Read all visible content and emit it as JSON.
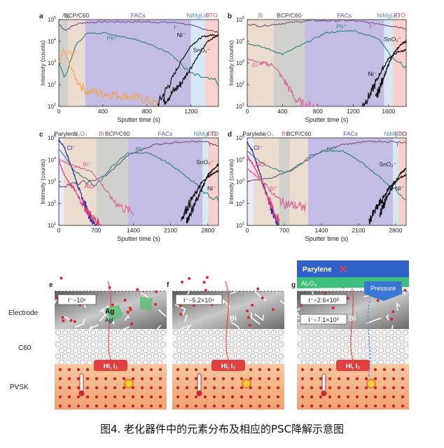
{
  "figure": {
    "caption": "图4. 老化器件中的元素分布及相应的PSC降解示意图",
    "panels": {
      "a": {
        "letter": "a",
        "layers": [
          "Ag",
          "BCP/C60",
          "FACs",
          "NiMgLiO",
          "FTO"
        ],
        "series_labels": [
          "AgI⁻",
          "Pb⁺",
          "I⁻",
          "Ni⁻",
          "SnO₂⁻"
        ]
      },
      "b": {
        "letter": "b",
        "layers": [
          "Bi",
          "BCP/C60",
          "FACs",
          "NiMgLiO",
          "FTO"
        ],
        "series_labels": [
          "Bi⁺",
          "Pb⁺",
          "I⁻",
          "Ni⁻",
          "SnO₂⁻"
        ]
      },
      "c": {
        "letter": "c",
        "layers": [
          "Parylene",
          "Al₂O₃",
          "Bi",
          "BCP/C60",
          "FACs",
          "NiMgLiO",
          "FTO"
        ],
        "series_labels": [
          "Cl⁻",
          "Bi⁺",
          "AlO⁻",
          "Pb⁺",
          "I⁻",
          "SnO₂⁻",
          "Ni⁻"
        ]
      },
      "d": {
        "letter": "d",
        "layers": [
          "Parylene",
          "Al₂O₃",
          "Bi",
          "BCP/C60",
          "FACs",
          "NiMgLiO",
          "FTO"
        ],
        "series_labels": [
          "Cl⁻",
          "AlO⁻",
          "Pb⁺",
          "Bi⁺",
          "I⁻",
          "SnO₂⁻",
          "Ni⁻"
        ]
      }
    },
    "schematics": {
      "e": {
        "letter": "e",
        "conc": "I⁻~10⁵",
        "metal": "Ag",
        "metal2": "AgI",
        "side_labels": [
          "Electrode",
          "C60",
          "PVSK"
        ],
        "hi": "HI, I₂"
      },
      "f": {
        "letter": "f",
        "conc": "I⁻~5.2×10⁴",
        "metal": "Bi",
        "hi": "HI, I₂"
      },
      "g": {
        "letter": "g",
        "conc1": "I⁻~2.6×10³",
        "conc2": "I⁻~7.1×10³",
        "metal": "Bi",
        "top1": "Parylene",
        "top2": "Al₂O₃",
        "pressure": "Pressure",
        "hi": "HI, I₂"
      }
    },
    "colors": {
      "iodine": "#7a5a86",
      "pb": "#3a8a7e",
      "ag": "#f5a545",
      "bi": "#d46d9a",
      "ni": "#111111",
      "sn": "#8a8a8a",
      "cl": "#2b2a9a",
      "alo": "#e0407a",
      "facs": "#b8b0e0",
      "nimg": "#cfe4f2",
      "fto": "#f7c8c5",
      "tan": "#e8d6c8",
      "gray": "#c8c8c4"
    }
  },
  "chart_data": [
    {
      "panel": "a",
      "type": "line",
      "xlabel": "Sputter time (s)",
      "ylabel": "Intensity (counts)",
      "xlim": [
        0,
        1450
      ],
      "ylim_log10": [
        1,
        5
      ],
      "xticks": [
        0,
        400,
        800,
        1200
      ],
      "series": [
        {
          "name": "I⁻",
          "x": [
            0,
            60,
            120,
            200,
            400,
            800,
            1100,
            1300,
            1450
          ],
          "log10": [
            4.8,
            4.5,
            4.7,
            4.85,
            4.9,
            4.9,
            4.85,
            4.6,
            4.4
          ]
        },
        {
          "name": "Pb⁺",
          "x": [
            0,
            60,
            150,
            250,
            400,
            700,
            1000,
            1200,
            1450
          ],
          "log10": [
            3.0,
            2.3,
            3.8,
            4.35,
            4.4,
            4.1,
            3.5,
            2.5,
            2.1
          ]
        },
        {
          "name": "AgI⁻",
          "x": [
            0,
            40,
            80,
            150,
            250,
            400,
            600,
            800,
            900
          ],
          "log10": [
            3.0,
            3.6,
            3.2,
            2.3,
            1.7,
            1.6,
            1.5,
            1.3,
            1.1
          ]
        },
        {
          "name": "Ni⁻",
          "x": [
            900,
            1000,
            1100,
            1200,
            1300,
            1400,
            1450
          ],
          "log10": [
            1.1,
            2.0,
            3.0,
            3.8,
            4.2,
            4.3,
            4.25
          ]
        },
        {
          "name": "SnO₂⁻",
          "x": [
            950,
            1100,
            1250,
            1350,
            1450
          ],
          "log10": [
            1.2,
            2.0,
            3.2,
            4.0,
            4.3
          ]
        }
      ]
    },
    {
      "panel": "b",
      "type": "line",
      "xlabel": "Sputter time (s)",
      "ylabel": "Intensity (counts)",
      "xlim": [
        0,
        1800
      ],
      "ylim_log10": [
        1,
        5
      ],
      "xticks": [
        0,
        400,
        800,
        1200,
        1600
      ],
      "series": [
        {
          "name": "I⁻",
          "x": [
            0,
            150,
            350,
            700,
            1200,
            1500,
            1800
          ],
          "log10": [
            4.8,
            4.7,
            4.8,
            4.95,
            4.95,
            4.8,
            4.6
          ]
        },
        {
          "name": "Pb⁺",
          "x": [
            0,
            200,
            400,
            650,
            900,
            1200,
            1500,
            1650,
            1800
          ],
          "log10": [
            3.9,
            3.7,
            3.4,
            3.9,
            4.4,
            4.5,
            4.1,
            3.2,
            2.8
          ]
        },
        {
          "name": "Bi⁺",
          "x": [
            0,
            150,
            300,
            450,
            550,
            650,
            800
          ],
          "log10": [
            3.2,
            3.0,
            2.9,
            2.0,
            1.3,
            1.05,
            1.0
          ]
        },
        {
          "name": "Ni⁻",
          "x": [
            1300,
            1400,
            1500,
            1600,
            1700,
            1800
          ],
          "log10": [
            1.0,
            1.6,
            2.5,
            3.2,
            3.5,
            3.6
          ]
        },
        {
          "name": "SnO₂⁻",
          "x": [
            1450,
            1550,
            1650,
            1750,
            1800
          ],
          "log10": [
            1.3,
            2.4,
            3.4,
            3.9,
            4.0
          ]
        }
      ]
    },
    {
      "panel": "c",
      "type": "line",
      "xlabel": "Sputter time (s)",
      "ylabel": "Intensity (counts)",
      "xlim": [
        0,
        3000
      ],
      "ylim_log10": [
        1,
        5
      ],
      "xticks": [
        0,
        700,
        1400,
        2100,
        2800
      ],
      "series": [
        {
          "name": "I⁻",
          "x": [
            0,
            300,
            600,
            900,
            1300,
            1800,
            2400,
            2800,
            3000
          ],
          "log10": [
            2.8,
            2.9,
            3.0,
            3.3,
            4.2,
            4.7,
            4.85,
            4.8,
            4.6
          ]
        },
        {
          "name": "Pb⁺",
          "x": [
            0,
            300,
            700,
            1000,
            1300,
            1700,
            2100,
            2500,
            2800,
            3000
          ],
          "log10": [
            4.5,
            3.5,
            2.8,
            3.7,
            4.3,
            4.3,
            3.8,
            3.0,
            2.4,
            2.1
          ]
        },
        {
          "name": "Cl⁻",
          "x": [
            0,
            100,
            250,
            400,
            550,
            650,
            750
          ],
          "log10": [
            4.9,
            4.6,
            3.6,
            2.5,
            1.6,
            1.1,
            1.0
          ]
        },
        {
          "name": "Bi⁺",
          "x": [
            0,
            300,
            600,
            800,
            1000,
            1200,
            1400
          ],
          "log10": [
            4.0,
            3.7,
            3.5,
            2.9,
            2.2,
            1.8,
            1.6
          ]
        },
        {
          "name": "AlO⁻",
          "x": [
            0,
            100,
            300,
            500,
            650,
            800
          ],
          "log10": [
            4.0,
            3.3,
            2.6,
            1.8,
            1.3,
            1.0
          ]
        },
        {
          "name": "Ni⁻",
          "x": [
            2300,
            2500,
            2700,
            2850,
            3000
          ],
          "log10": [
            1.3,
            2.2,
            3.0,
            3.3,
            3.5
          ]
        },
        {
          "name": "SnO₂⁻",
          "x": [
            2400,
            2600,
            2800,
            3000
          ],
          "log10": [
            1.2,
            2.2,
            3.3,
            3.8
          ]
        }
      ]
    },
    {
      "panel": "d",
      "type": "line",
      "xlabel": "Sputter time (s)",
      "ylabel": "Intensity (counts)",
      "xlim": [
        0,
        3000
      ],
      "ylim_log10": [
        1,
        5
      ],
      "xticks": [
        0,
        700,
        1400,
        2100,
        2800
      ],
      "series": [
        {
          "name": "I⁻",
          "x": [
            0,
            500,
            900,
            1200,
            1800,
            2400,
            3000
          ],
          "log10": [
            3.0,
            3.2,
            3.6,
            4.2,
            4.7,
            4.85,
            4.8
          ]
        },
        {
          "name": "Pb⁺",
          "x": [
            0,
            300,
            700,
            1000,
            1400,
            1800,
            2200,
            2600,
            3000
          ],
          "log10": [
            4.4,
            3.8,
            3.4,
            3.8,
            4.4,
            4.4,
            3.8,
            3.0,
            2.2
          ]
        },
        {
          "name": "Cl⁻",
          "x": [
            0,
            100,
            250,
            400,
            500,
            600
          ],
          "log10": [
            4.8,
            4.4,
            3.3,
            2.2,
            1.4,
            1.0
          ]
        },
        {
          "name": "AlO⁻",
          "x": [
            0,
            150,
            300,
            450,
            600
          ],
          "log10": [
            4.2,
            3.6,
            2.8,
            1.9,
            1.2
          ]
        },
        {
          "name": "Bi⁺",
          "x": [
            0,
            300,
            500,
            700,
            900,
            1100
          ],
          "log10": [
            3.6,
            3.0,
            2.4,
            2.0,
            1.9,
            1.8
          ]
        },
        {
          "name": "Ni⁻",
          "x": [
            2300,
            2500,
            2700,
            2900,
            3000
          ],
          "log10": [
            1.2,
            2.0,
            2.8,
            3.2,
            3.3
          ]
        },
        {
          "name": "SnO₂⁻",
          "x": [
            2500,
            2700,
            2900,
            3000
          ],
          "log10": [
            1.5,
            2.6,
            3.4,
            3.6
          ]
        }
      ]
    }
  ]
}
